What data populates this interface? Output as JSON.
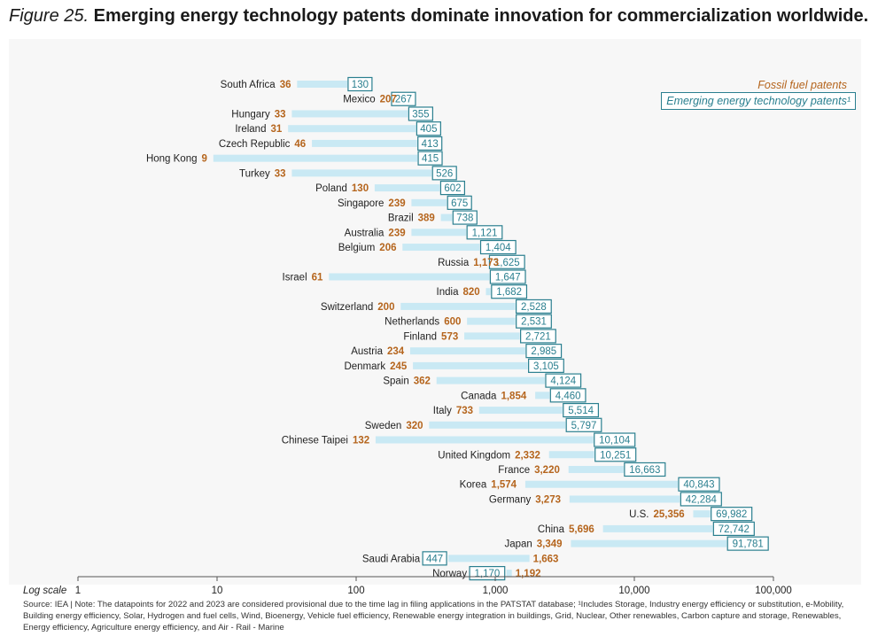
{
  "figure_label": "Figure 25.",
  "title": "Emerging energy technology patents dominate innovation for commercialization worldwide.",
  "source_note": "Source: IEA | Note: The datapoints for 2022 and 2023 are considered provisional due to the time lag in filing applications in the PATSTAT database; ¹Includes Storage, Industry energy efficiency or substitution, e-Mobility, Building energy efficiency, Solar, Hydrogen and fuel cells, Wind, Bioenergy, Vehicle fuel efficiency, Renewable energy integration in buildings, Grid, Nuclear, Other renewables, Carbon capture and storage, Renewables, Energy efficiency, Agriculture energy efficiency, and Air - Rail - Marine",
  "colors": {
    "fossil": "#b5651d",
    "emerging": "#2a7f8f",
    "bar": "#c9e9f4",
    "axis": "#555555"
  },
  "chart_data": {
    "type": "dumbbell",
    "x_scale": "log",
    "x_label": "Log scale",
    "xlim": [
      1,
      100000
    ],
    "x_ticks": [
      1,
      10,
      100,
      1000,
      10000,
      100000
    ],
    "x_tick_labels": [
      "1",
      "10",
      "100",
      "1,000",
      "10,000",
      "100,000"
    ],
    "legend": {
      "position": "top-right",
      "fossil": "Fossil fuel patents",
      "emerging": "Emerging energy technology patents¹"
    },
    "rows": [
      {
        "country": "South Africa",
        "fossil": 36,
        "fossil_label": "36",
        "emerging": 130,
        "emerging_label": "130"
      },
      {
        "country": "Mexico",
        "fossil": 207,
        "fossil_label": "207",
        "emerging": 267,
        "emerging_label": "267"
      },
      {
        "country": "Hungary",
        "fossil": 33,
        "fossil_label": "33",
        "emerging": 355,
        "emerging_label": "355"
      },
      {
        "country": "Ireland",
        "fossil": 31,
        "fossil_label": "31",
        "emerging": 405,
        "emerging_label": "405"
      },
      {
        "country": "Czech Republic",
        "fossil": 46,
        "fossil_label": "46",
        "emerging": 413,
        "emerging_label": "413"
      },
      {
        "country": "Hong Kong",
        "fossil": 9,
        "fossil_label": "9",
        "emerging": 415,
        "emerging_label": "415"
      },
      {
        "country": "Turkey",
        "fossil": 33,
        "fossil_label": "33",
        "emerging": 526,
        "emerging_label": "526"
      },
      {
        "country": "Poland",
        "fossil": 130,
        "fossil_label": "130",
        "emerging": 602,
        "emerging_label": "602"
      },
      {
        "country": "Singapore",
        "fossil": 239,
        "fossil_label": "239",
        "emerging": 675,
        "emerging_label": "675"
      },
      {
        "country": "Brazil",
        "fossil": 389,
        "fossil_label": "389",
        "emerging": 738,
        "emerging_label": "738"
      },
      {
        "country": "Australia",
        "fossil": 239,
        "fossil_label": "239",
        "emerging": 1121,
        "emerging_label": "1,121"
      },
      {
        "country": "Belgium",
        "fossil": 206,
        "fossil_label": "206",
        "emerging": 1404,
        "emerging_label": "1,404"
      },
      {
        "country": "Russia",
        "fossil": 1173,
        "fossil_label": "1,173",
        "emerging": 1625,
        "emerging_label": "1,625"
      },
      {
        "country": "Israel",
        "fossil": 61,
        "fossil_label": "61",
        "emerging": 1647,
        "emerging_label": "1,647"
      },
      {
        "country": "India",
        "fossil": 820,
        "fossil_label": "820",
        "emerging": 1682,
        "emerging_label": "1,682"
      },
      {
        "country": "Switzerland",
        "fossil": 200,
        "fossil_label": "200",
        "emerging": 2528,
        "emerging_label": "2,528"
      },
      {
        "country": "Netherlands",
        "fossil": 600,
        "fossil_label": "600",
        "emerging": 2531,
        "emerging_label": "2,531"
      },
      {
        "country": "Finland",
        "fossil": 573,
        "fossil_label": "573",
        "emerging": 2721,
        "emerging_label": "2,721"
      },
      {
        "country": "Austria",
        "fossil": 234,
        "fossil_label": "234",
        "emerging": 2985,
        "emerging_label": "2,985"
      },
      {
        "country": "Denmark",
        "fossil": 245,
        "fossil_label": "245",
        "emerging": 3105,
        "emerging_label": "3,105"
      },
      {
        "country": "Spain",
        "fossil": 362,
        "fossil_label": "362",
        "emerging": 4124,
        "emerging_label": "4,124"
      },
      {
        "country": "Canada",
        "fossil": 1854,
        "fossil_label": "1,854",
        "emerging": 4460,
        "emerging_label": "4,460"
      },
      {
        "country": "Italy",
        "fossil": 733,
        "fossil_label": "733",
        "emerging": 5514,
        "emerging_label": "5,514"
      },
      {
        "country": "Sweden",
        "fossil": 320,
        "fossil_label": "320",
        "emerging": 5797,
        "emerging_label": "5,797"
      },
      {
        "country": "Chinese Taipei",
        "fossil": 132,
        "fossil_label": "132",
        "emerging": 10104,
        "emerging_label": "10,104"
      },
      {
        "country": "United Kingdom",
        "fossil": 2332,
        "fossil_label": "2,332",
        "emerging": 10251,
        "emerging_label": "10,251"
      },
      {
        "country": "France",
        "fossil": 3220,
        "fossil_label": "3,220",
        "emerging": 16663,
        "emerging_label": "16,663"
      },
      {
        "country": "Korea",
        "fossil": 1574,
        "fossil_label": "1,574",
        "emerging": 40843,
        "emerging_label": "40,843"
      },
      {
        "country": "Germany",
        "fossil": 3273,
        "fossil_label": "3,273",
        "emerging": 42284,
        "emerging_label": "42,284"
      },
      {
        "country": "U.S.",
        "fossil": 25356,
        "fossil_label": "25,356",
        "emerging": 69982,
        "emerging_label": "69,982"
      },
      {
        "country": "China",
        "fossil": 5696,
        "fossil_label": "5,696",
        "emerging": 72742,
        "emerging_label": "72,742"
      },
      {
        "country": "Japan",
        "fossil": 3349,
        "fossil_label": "3,349",
        "emerging": 91781,
        "emerging_label": "91,781"
      },
      {
        "country": "Saudi Arabia",
        "fossil": 1663,
        "fossil_label": "1,663",
        "emerging": 447,
        "emerging_label": "447"
      },
      {
        "country": "Norway",
        "fossil": 1192,
        "fossil_label": "1,192",
        "emerging": 1170,
        "emerging_label": "1,170"
      }
    ]
  }
}
